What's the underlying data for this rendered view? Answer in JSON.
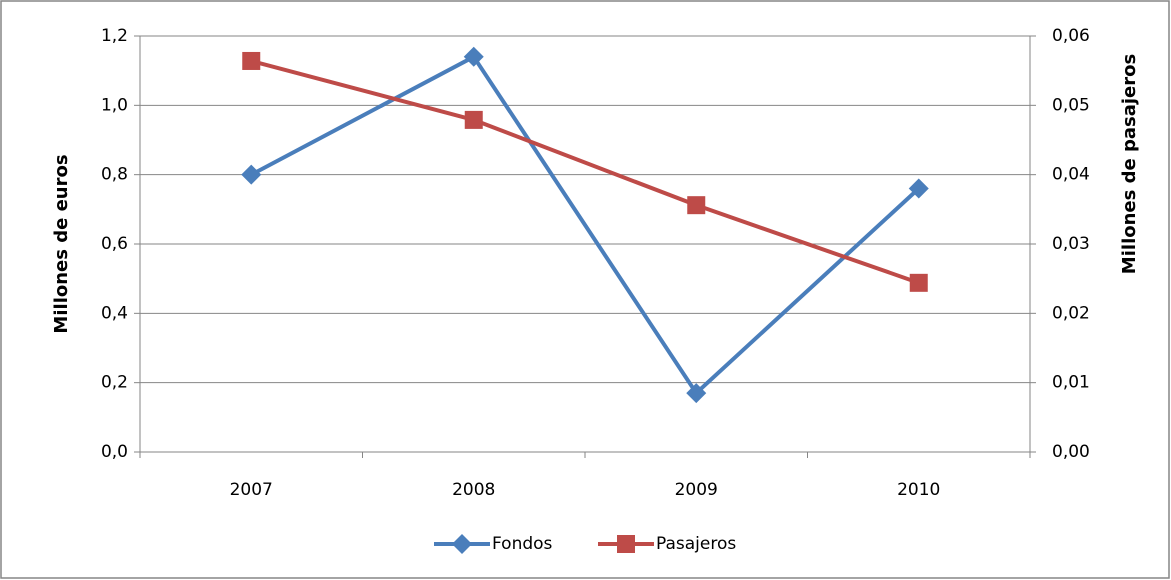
{
  "chart_data": {
    "type": "line",
    "categories": [
      "2007",
      "2008",
      "2009",
      "2010"
    ],
    "series": [
      {
        "name": "Fondos",
        "color": "#4a7ebb",
        "marker": "diamond",
        "values": [
          0.8,
          1.14,
          0.17,
          0.76
        ]
      },
      {
        "name": "Pasajeros",
        "color": "#be4b48",
        "marker": "square",
        "axis": "y2",
        "values": [
          0.0564,
          0.0479,
          0.0356,
          0.0244
        ]
      }
    ],
    "y_label": "Millones de euros",
    "y2_label": "Millones de pasajeros",
    "ylim": [
      0,
      1.2
    ],
    "yticks": [
      {
        "value": 0,
        "label": "0,0"
      },
      {
        "value": 0.2,
        "label": "0,2"
      },
      {
        "value": 0.4,
        "label": "0,4"
      },
      {
        "value": 0.6,
        "label": "0,6"
      },
      {
        "value": 0.8,
        "label": "0,8"
      },
      {
        "value": 1.0,
        "label": "1,0"
      },
      {
        "value": 1.2,
        "label": "1,2"
      }
    ],
    "y2lim": [
      0,
      0.06
    ],
    "y2ticks": [
      {
        "value": 0,
        "label": "0,00"
      },
      {
        "value": 0.01,
        "label": "0,01"
      },
      {
        "value": 0.02,
        "label": "0,02"
      },
      {
        "value": 0.03,
        "label": "0,03"
      },
      {
        "value": 0.04,
        "label": "0,04"
      },
      {
        "value": 0.05,
        "label": "0,05"
      },
      {
        "value": 0.06,
        "label": "0,06"
      }
    ],
    "grid": true,
    "legend": "bottom"
  }
}
